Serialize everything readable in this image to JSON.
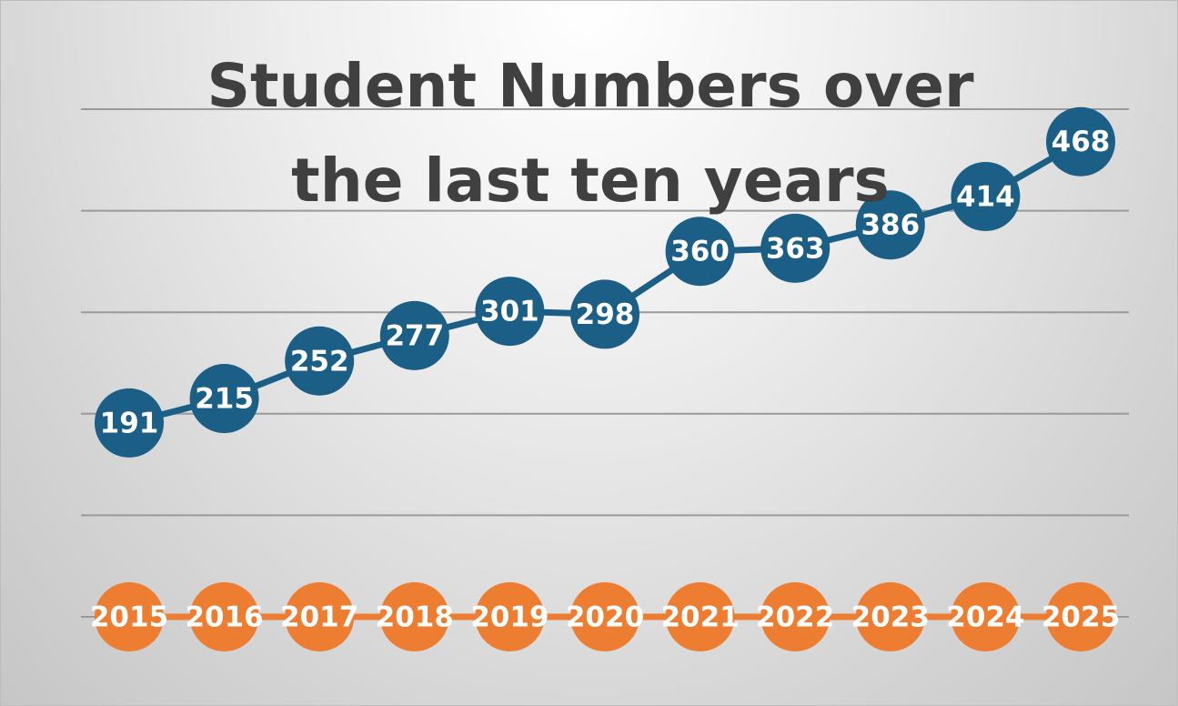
{
  "chart_data": {
    "type": "line",
    "title": "Student Numbers over the last ten years",
    "categories": [
      "2015",
      "2016",
      "2017",
      "2018",
      "2019",
      "2020",
      "2021",
      "2022",
      "2023",
      "2024",
      "2025"
    ],
    "series": [
      {
        "color": "#1b5e86",
        "values": [
          191,
          215,
          252,
          277,
          301,
          298,
          360,
          363,
          386,
          414,
          468
        ]
      },
      {
        "color": "#ed7d31",
        "values": [
          0,
          0,
          0,
          0,
          0,
          0,
          0,
          0,
          0,
          0,
          0
        ]
      }
    ],
    "ylim": [
      0,
      500
    ],
    "yticks": [
      0,
      100,
      200,
      300,
      400,
      500
    ],
    "grid": true
  }
}
